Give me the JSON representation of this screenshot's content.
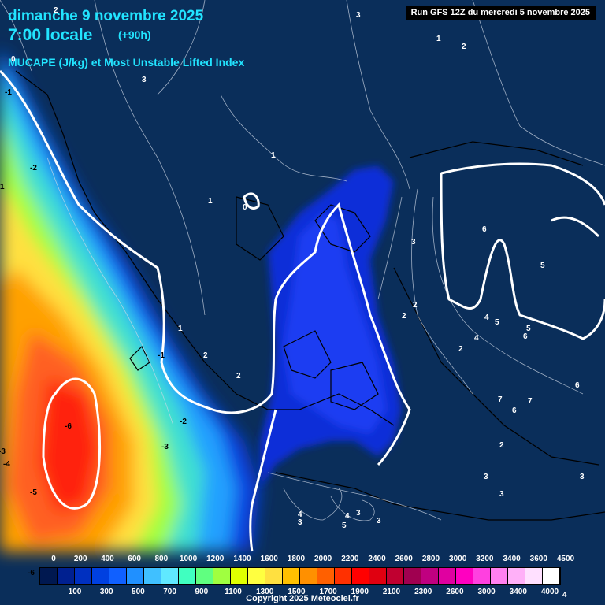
{
  "header": {
    "date": "dimanche 9 novembre 2025",
    "time": "7:00 locale",
    "offset": "(+90h)",
    "product": "MUCAPE (J/kg) et Most Unstable Lifted Index",
    "run": "Run GFS 12Z du mercredi 5 novembre 2025"
  },
  "legend": {
    "top_ticks": [
      "0",
      "200",
      "400",
      "600",
      "800",
      "1000",
      "1200",
      "1400",
      "1600",
      "1800",
      "2000",
      "2200",
      "2400",
      "2600",
      "2800",
      "3000",
      "3200",
      "3400",
      "3600",
      "4500"
    ],
    "bottom_ticks": [
      "100",
      "300",
      "500",
      "700",
      "900",
      "1100",
      "1300",
      "1500",
      "1700",
      "1900",
      "2100",
      "2300",
      "2600",
      "3000",
      "3400",
      "4000"
    ],
    "colors": [
      "#001850",
      "#002090",
      "#0030c0",
      "#0040e0",
      "#1060ff",
      "#2090ff",
      "#40c0ff",
      "#60e8ff",
      "#40ffc0",
      "#60ff80",
      "#a0ff40",
      "#e0ff00",
      "#ffff40",
      "#ffe040",
      "#ffc000",
      "#ff9000",
      "#ff6000",
      "#ff3000",
      "#ff0000",
      "#e00010",
      "#c00030",
      "#a00050",
      "#c00080",
      "#e000a0",
      "#ff00c0",
      "#ff40e0",
      "#ff80f0",
      "#ffb0f8",
      "#ffe0ff",
      "#ffffff"
    ]
  },
  "lifted_index_labels": [
    {
      "text": "-1"
    },
    {
      "text": "-2"
    },
    {
      "text": "1"
    },
    {
      "text": "-6"
    },
    {
      "text": "-5"
    },
    {
      "text": "-4"
    },
    {
      "text": "-3"
    },
    {
      "text": "-2"
    },
    {
      "text": "-1"
    },
    {
      "text": "-6"
    },
    {
      "text": "0"
    },
    {
      "text": "2"
    },
    {
      "text": "3"
    },
    {
      "text": "3"
    },
    {
      "text": "1"
    },
    {
      "text": "2"
    },
    {
      "text": "1"
    },
    {
      "text": "0"
    },
    {
      "text": "1"
    },
    {
      "text": "1"
    },
    {
      "text": "2"
    },
    {
      "text": "2"
    },
    {
      "text": "2"
    },
    {
      "text": "3"
    },
    {
      "text": "2"
    },
    {
      "text": "2"
    },
    {
      "text": "4"
    },
    {
      "text": "4"
    },
    {
      "text": "5"
    },
    {
      "text": "6"
    },
    {
      "text": "5"
    },
    {
      "text": "6"
    },
    {
      "text": "5"
    },
    {
      "text": "7"
    },
    {
      "text": "7"
    },
    {
      "text": "6"
    },
    {
      "text": "6"
    },
    {
      "text": "2"
    },
    {
      "text": "3"
    },
    {
      "text": "3"
    },
    {
      "text": "3"
    },
    {
      "text": "4"
    },
    {
      "text": "3"
    },
    {
      "text": "4"
    },
    {
      "text": "5"
    },
    {
      "text": "3"
    },
    {
      "text": "3"
    },
    {
      "text": "4"
    },
    {
      "text": "-3"
    }
  ],
  "copyright": "Copyright 2025 Meteociel.fr"
}
